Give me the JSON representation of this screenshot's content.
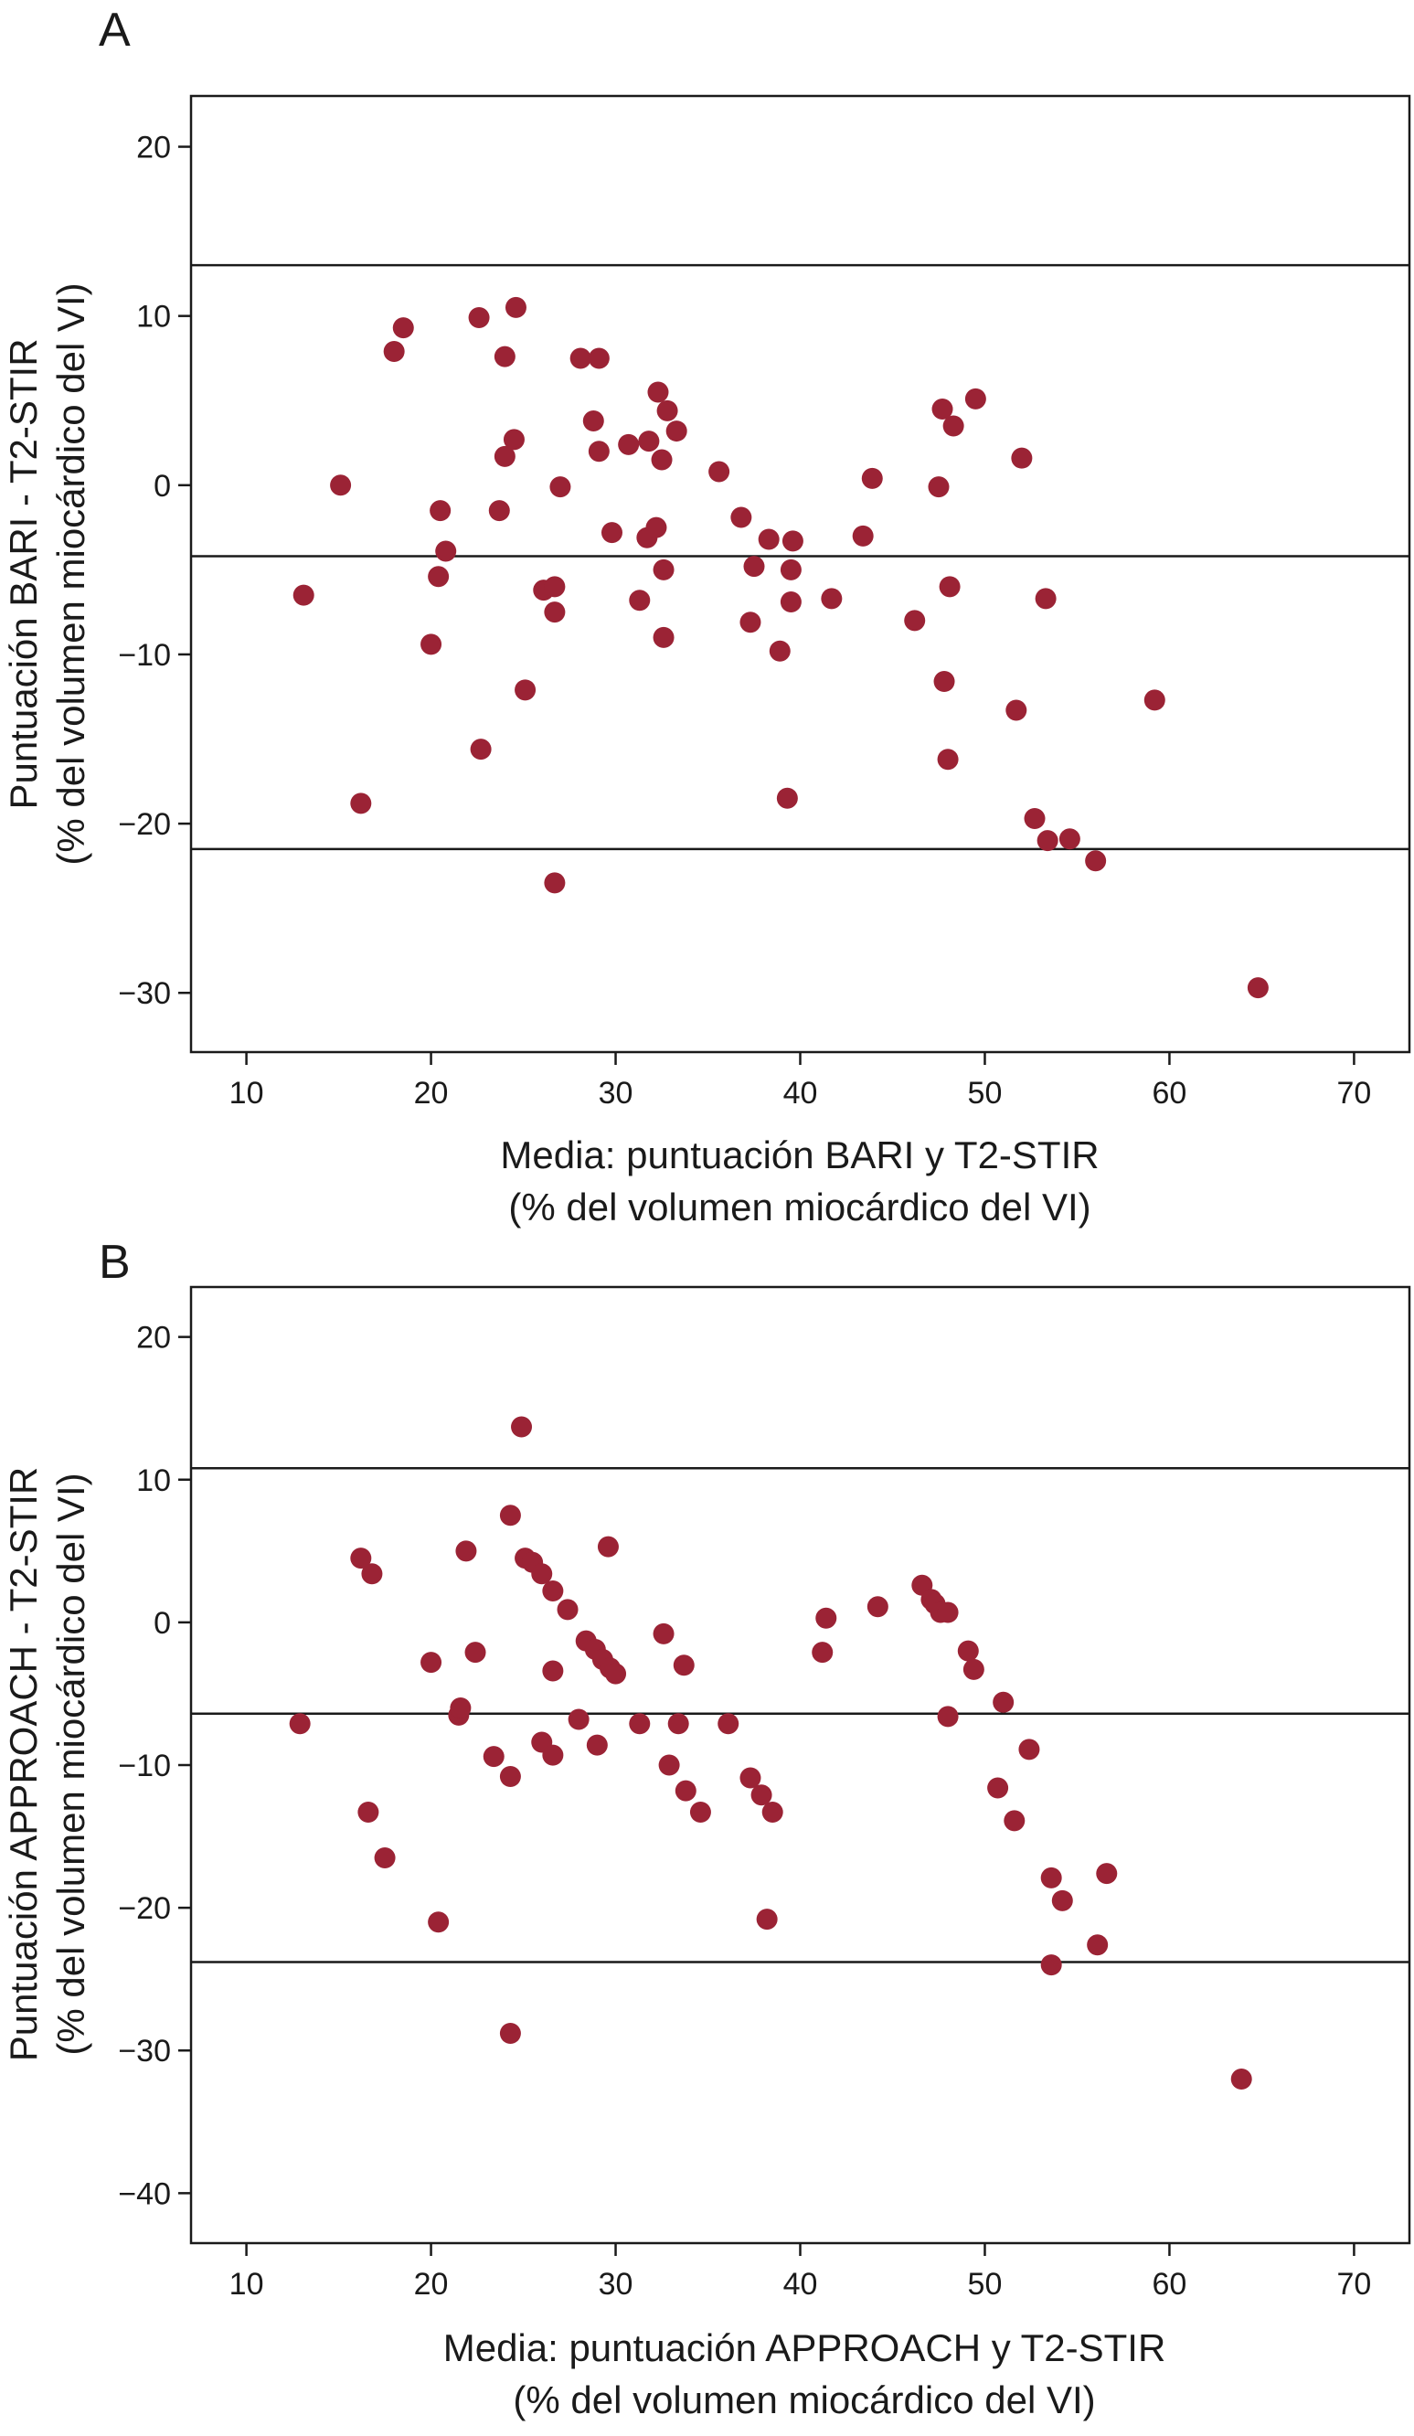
{
  "colors": {
    "point": "#9b2335",
    "axis": "#1a1a1a"
  },
  "chart_data": [
    {
      "type": "scatter",
      "panel_label": "A",
      "xlabel": [
        "Media: puntuación BARI y T2-STIR",
        "(% del volumen miocárdico del VI)"
      ],
      "ylabel": [
        "Puntuación BARI - T2-STIR",
        "(% del volumen miocárdico del VI)"
      ],
      "xlim": [
        7,
        73
      ],
      "ylim": [
        -33.5,
        23
      ],
      "xticks": [
        10,
        20,
        30,
        40,
        50,
        60,
        70
      ],
      "yticks": [
        20,
        10,
        0,
        -10,
        -20,
        -30
      ],
      "xtick_labels": [
        "10",
        "20",
        "30",
        "40",
        "50",
        "60",
        "70"
      ],
      "ytick_labels": [
        "20",
        "10",
        "0",
        "−10",
        "−20",
        "−30"
      ],
      "hlines": [
        13.0,
        -4.2,
        -21.5
      ],
      "grid": false,
      "points": [
        [
          13.1,
          -6.5
        ],
        [
          15.1,
          0.0
        ],
        [
          16.2,
          -18.8
        ],
        [
          18.0,
          7.9
        ],
        [
          18.5,
          9.3
        ],
        [
          20.0,
          -9.4
        ],
        [
          20.4,
          -5.4
        ],
        [
          20.5,
          -1.5
        ],
        [
          20.8,
          -3.9
        ],
        [
          22.6,
          9.9
        ],
        [
          22.7,
          -15.6
        ],
        [
          23.7,
          -1.5
        ],
        [
          24.0,
          1.7
        ],
        [
          24.0,
          7.6
        ],
        [
          24.5,
          2.7
        ],
        [
          24.6,
          10.5
        ],
        [
          25.1,
          -12.1
        ],
        [
          26.1,
          -6.2
        ],
        [
          26.7,
          -6.0
        ],
        [
          26.7,
          -7.5
        ],
        [
          26.7,
          -23.5
        ],
        [
          27.0,
          -0.1
        ],
        [
          28.1,
          7.5
        ],
        [
          28.8,
          3.8
        ],
        [
          29.1,
          7.5
        ],
        [
          29.1,
          2.0
        ],
        [
          29.8,
          -2.8
        ],
        [
          30.7,
          2.4
        ],
        [
          31.3,
          -6.8
        ],
        [
          31.7,
          -3.1
        ],
        [
          31.8,
          2.6
        ],
        [
          32.2,
          -2.5
        ],
        [
          32.3,
          5.5
        ],
        [
          32.5,
          1.5
        ],
        [
          32.6,
          -9.0
        ],
        [
          32.6,
          -5.0
        ],
        [
          32.8,
          4.4
        ],
        [
          33.3,
          3.2
        ],
        [
          35.6,
          0.8
        ],
        [
          36.8,
          -1.9
        ],
        [
          37.3,
          -8.1
        ],
        [
          37.5,
          -4.8
        ],
        [
          38.3,
          -3.2
        ],
        [
          38.9,
          -9.8
        ],
        [
          39.3,
          -18.5
        ],
        [
          39.5,
          -6.9
        ],
        [
          39.5,
          -5.0
        ],
        [
          39.6,
          -3.3
        ],
        [
          41.7,
          -6.7
        ],
        [
          43.4,
          -3.0
        ],
        [
          43.9,
          0.4
        ],
        [
          46.2,
          -8.0
        ],
        [
          47.5,
          -0.1
        ],
        [
          47.7,
          4.5
        ],
        [
          47.8,
          -11.6
        ],
        [
          48.0,
          -16.2
        ],
        [
          48.1,
          -6.0
        ],
        [
          48.3,
          3.5
        ],
        [
          49.5,
          5.1
        ],
        [
          51.7,
          -13.3
        ],
        [
          52.0,
          1.6
        ],
        [
          52.7,
          -19.7
        ],
        [
          53.3,
          -6.7
        ],
        [
          53.4,
          -21.0
        ],
        [
          54.6,
          -20.9
        ],
        [
          56.0,
          -22.2
        ],
        [
          59.2,
          -12.7
        ],
        [
          64.8,
          -29.7
        ]
      ]
    },
    {
      "type": "scatter",
      "panel_label": "B",
      "xlabel": [
        "Media: puntuación APPROACH y T2-STIR",
        "(% del volumen miocárdico del VI)"
      ],
      "ylabel": [
        "Puntuación APPROACH - T2-STIR",
        "(% del volumen miocárdico del VI)"
      ],
      "xlim": [
        7,
        73
      ],
      "ylim": [
        -43.5,
        23.5
      ],
      "xticks": [
        10,
        20,
        30,
        40,
        50,
        60,
        70
      ],
      "yticks": [
        20,
        10,
        0,
        -10,
        -20,
        -30,
        -40
      ],
      "xtick_labels": [
        "10",
        "20",
        "30",
        "40",
        "50",
        "60",
        "70"
      ],
      "ytick_labels": [
        "20",
        "10",
        "0",
        "−10",
        "−20",
        "−30",
        "−40"
      ],
      "hlines": [
        10.8,
        -6.4,
        -23.8
      ],
      "grid": false,
      "points": [
        [
          12.9,
          -7.1
        ],
        [
          16.2,
          4.5
        ],
        [
          16.6,
          -13.3
        ],
        [
          16.8,
          3.4
        ],
        [
          17.5,
          -16.5
        ],
        [
          20.0,
          -2.8
        ],
        [
          20.4,
          -21.0
        ],
        [
          21.5,
          -6.5
        ],
        [
          21.6,
          -6.0
        ],
        [
          21.9,
          5.0
        ],
        [
          22.4,
          -2.1
        ],
        [
          23.4,
          -9.4
        ],
        [
          24.3,
          -10.8
        ],
        [
          24.3,
          7.5
        ],
        [
          24.3,
          -28.8
        ],
        [
          24.9,
          13.7
        ],
        [
          25.1,
          4.5
        ],
        [
          25.5,
          4.2
        ],
        [
          26.0,
          3.4
        ],
        [
          26.0,
          -8.4
        ],
        [
          26.6,
          2.2
        ],
        [
          26.6,
          -3.4
        ],
        [
          26.6,
          -9.3
        ],
        [
          27.4,
          0.9
        ],
        [
          28.0,
          -6.8
        ],
        [
          28.4,
          -1.3
        ],
        [
          28.9,
          -1.9
        ],
        [
          29.0,
          -8.6
        ],
        [
          29.3,
          -2.6
        ],
        [
          29.6,
          5.3
        ],
        [
          29.7,
          -3.2
        ],
        [
          30.0,
          -3.6
        ],
        [
          31.3,
          -7.1
        ],
        [
          32.6,
          -0.8
        ],
        [
          32.9,
          -10.0
        ],
        [
          33.4,
          -7.1
        ],
        [
          33.7,
          -3.0
        ],
        [
          33.8,
          -11.8
        ],
        [
          34.6,
          -13.3
        ],
        [
          36.1,
          -7.1
        ],
        [
          37.3,
          -10.9
        ],
        [
          37.9,
          -12.1
        ],
        [
          38.2,
          -20.8
        ],
        [
          38.5,
          -13.3
        ],
        [
          41.2,
          -2.1
        ],
        [
          41.4,
          0.3
        ],
        [
          44.2,
          1.1
        ],
        [
          46.6,
          2.6
        ],
        [
          47.1,
          1.6
        ],
        [
          47.3,
          1.3
        ],
        [
          47.6,
          0.7
        ],
        [
          48.0,
          0.7
        ],
        [
          48.0,
          -6.6
        ],
        [
          49.1,
          -2.0
        ],
        [
          49.4,
          -3.3
        ],
        [
          50.7,
          -11.6
        ],
        [
          51.0,
          -5.6
        ],
        [
          51.6,
          -13.9
        ],
        [
          52.4,
          -8.9
        ],
        [
          53.6,
          -17.9
        ],
        [
          53.6,
          -24.0
        ],
        [
          54.2,
          -19.5
        ],
        [
          56.1,
          -22.6
        ],
        [
          56.6,
          -17.6
        ],
        [
          63.9,
          -32.0
        ]
      ]
    }
  ]
}
